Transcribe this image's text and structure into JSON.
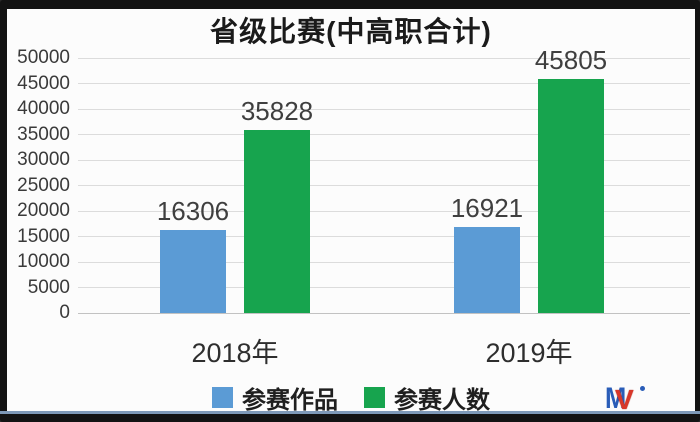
{
  "page": {
    "background_frame_color": "#131313",
    "panel_background": "#FCFCFC",
    "bottom_accent_color": "#7E99B8"
  },
  "chart_data": {
    "type": "bar",
    "title": "省级比赛(中高职合计)",
    "categories": [
      "2018年",
      "2019年"
    ],
    "series": [
      {
        "name": "参赛作品",
        "key": "entries",
        "color": "#5B9BD5",
        "values": [
          16306,
          16921
        ]
      },
      {
        "name": "参赛人数",
        "key": "participants",
        "color": "#17A44E",
        "values": [
          35828,
          45805
        ]
      }
    ],
    "data_labels_shown": true,
    "ylim": [
      0,
      50000
    ],
    "yticks": [
      0,
      5000,
      10000,
      15000,
      20000,
      25000,
      30000,
      35000,
      40000,
      45000,
      50000
    ],
    "grid": true,
    "gridline_color": "#DCDCDC",
    "axis_text_color": "#3A3A3A",
    "data_label_color": "#3F3F3F",
    "title_color": "#1A1A1A",
    "legend_position": "bottom"
  },
  "logo": {
    "m": "M",
    "v": "V",
    "m_color": "#2A5DB8",
    "v_color": "#D8372A"
  }
}
